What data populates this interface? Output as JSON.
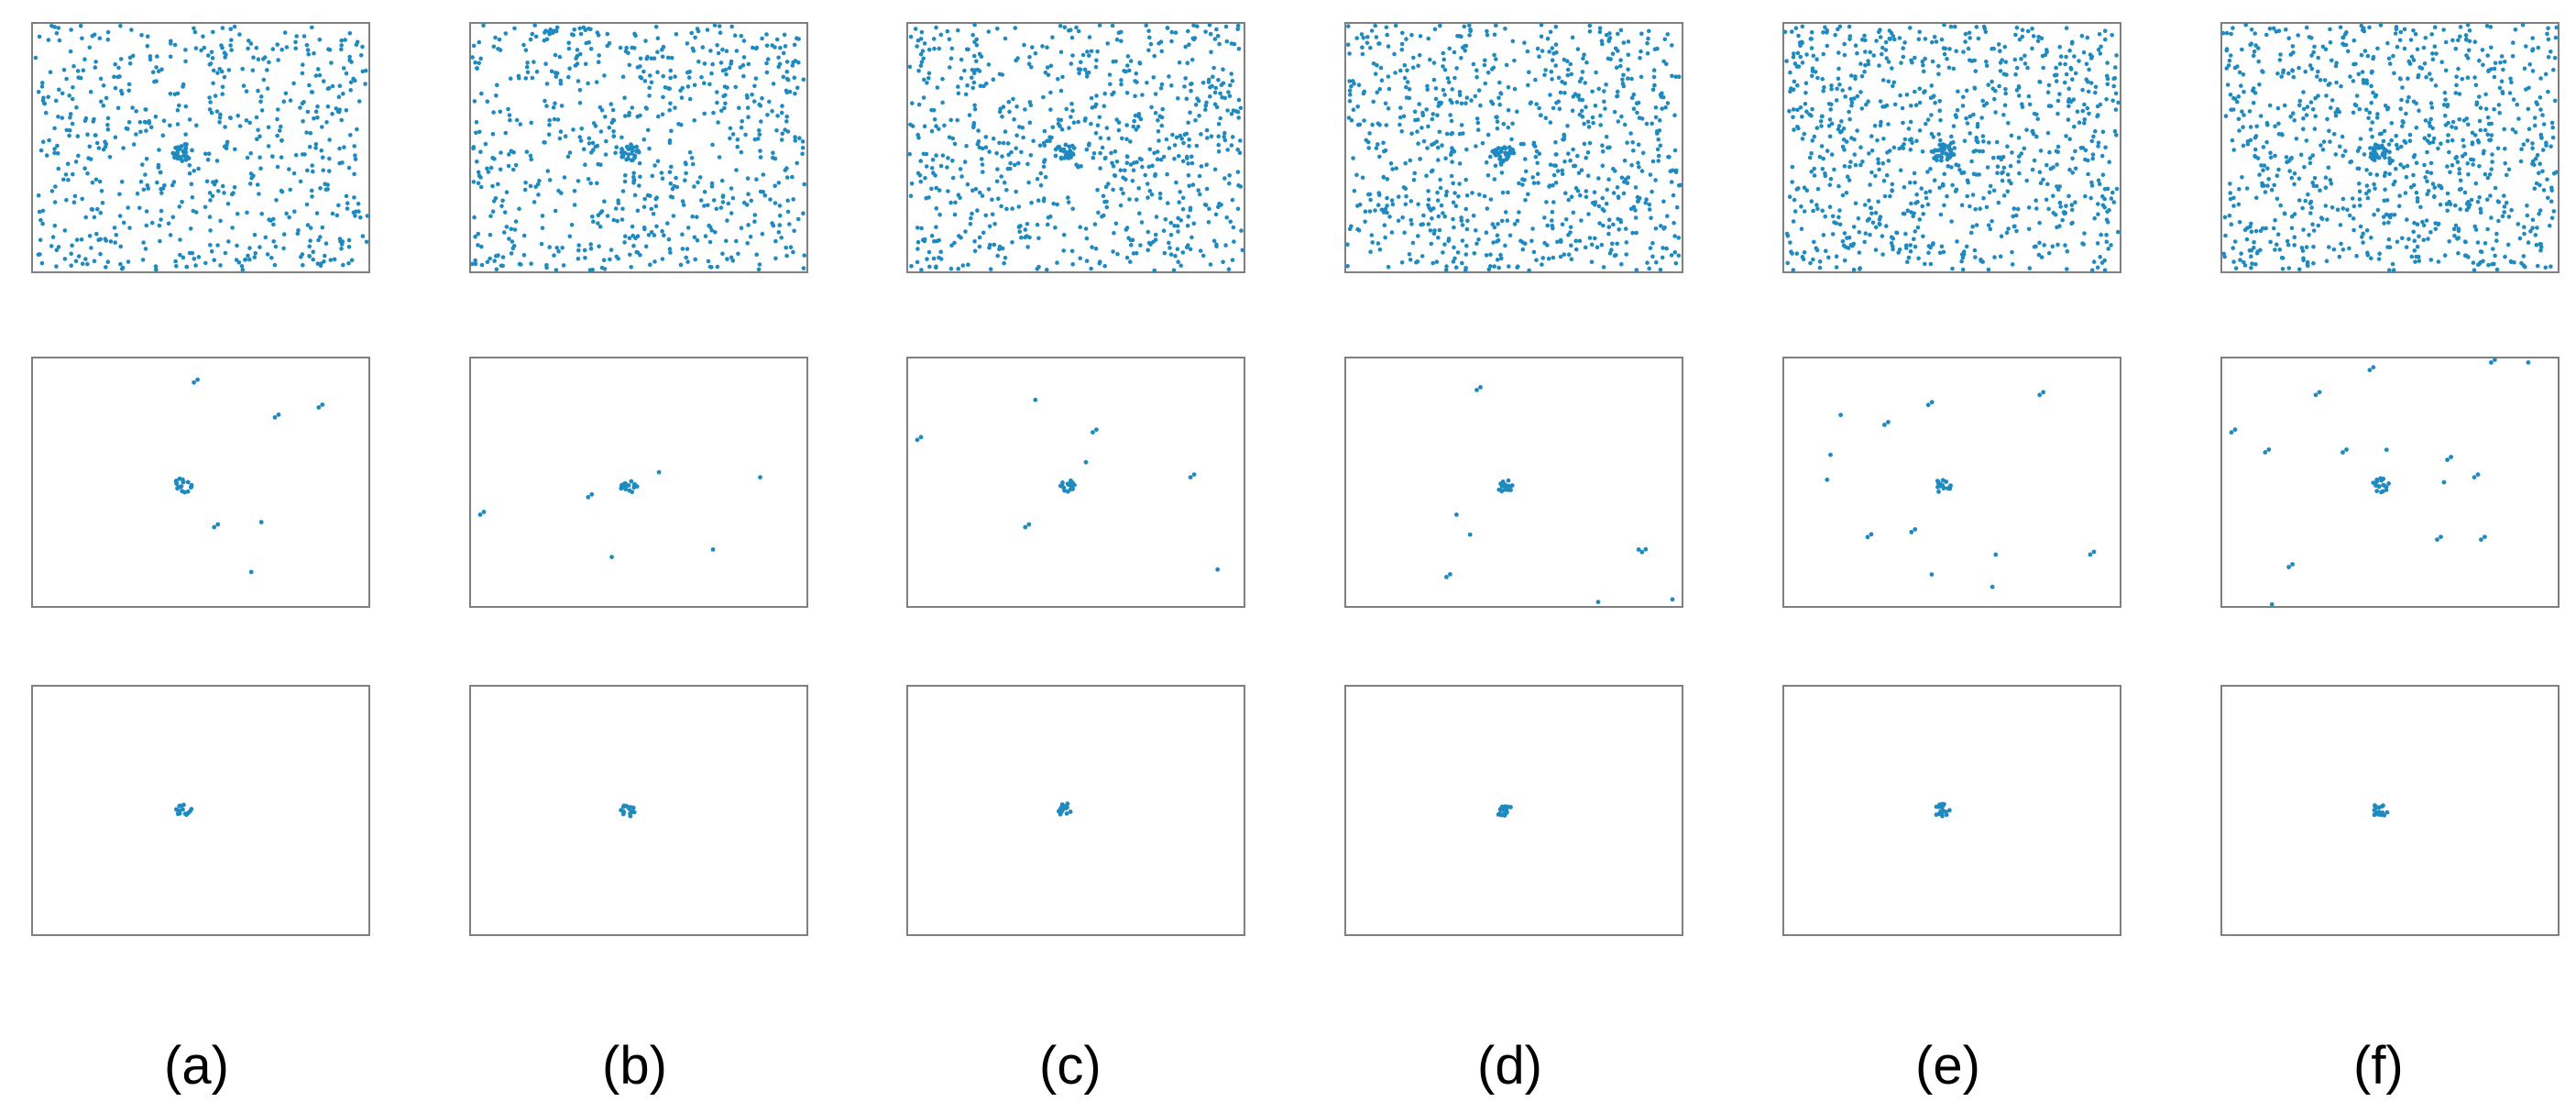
{
  "figure": {
    "columns": [
      {
        "label": "(a)"
      },
      {
        "label": "(b)"
      },
      {
        "label": "(c)"
      },
      {
        "label": "(d)"
      },
      {
        "label": "(e)"
      },
      {
        "label": "(f)"
      }
    ],
    "rows": [
      {
        "content": "dense-scatter"
      },
      {
        "content": "sparse-scatter"
      },
      {
        "content": "central-cluster"
      }
    ],
    "colors": {
      "point": "#1f8ac0",
      "frame": "#7f7f7f",
      "background": "#ffffff",
      "label": "#000000"
    }
  }
}
